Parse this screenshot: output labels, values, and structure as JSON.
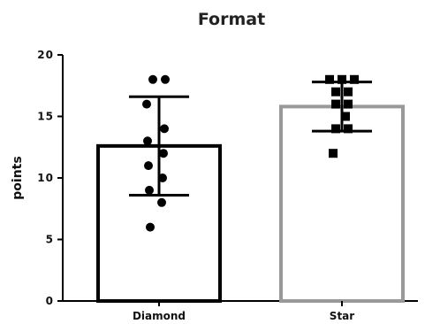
{
  "chart_data": {
    "type": "bar",
    "title": "Format",
    "xlabel": "",
    "ylabel": "points",
    "ylim": [
      0,
      20
    ],
    "yticks": [
      "0",
      "5",
      "10",
      "15",
      "20"
    ],
    "categories": [
      "Diamond",
      "Star"
    ],
    "grid": false,
    "legend": "none",
    "bars": [
      {
        "category": "Diamond",
        "mean": 12.6,
        "error_low": 8.6,
        "error_high": 16.6,
        "bar_color": "#000000",
        "point_shape": "circle",
        "points": [
          18,
          18,
          16,
          14,
          13,
          12,
          11,
          10,
          9,
          8,
          6
        ]
      },
      {
        "category": "Star",
        "mean": 15.8,
        "error_low": 13.8,
        "error_high": 17.8,
        "bar_color": "#999999",
        "point_shape": "square",
        "points": [
          18,
          18,
          18,
          17,
          17,
          16,
          16,
          15,
          14,
          14,
          12
        ]
      }
    ]
  }
}
